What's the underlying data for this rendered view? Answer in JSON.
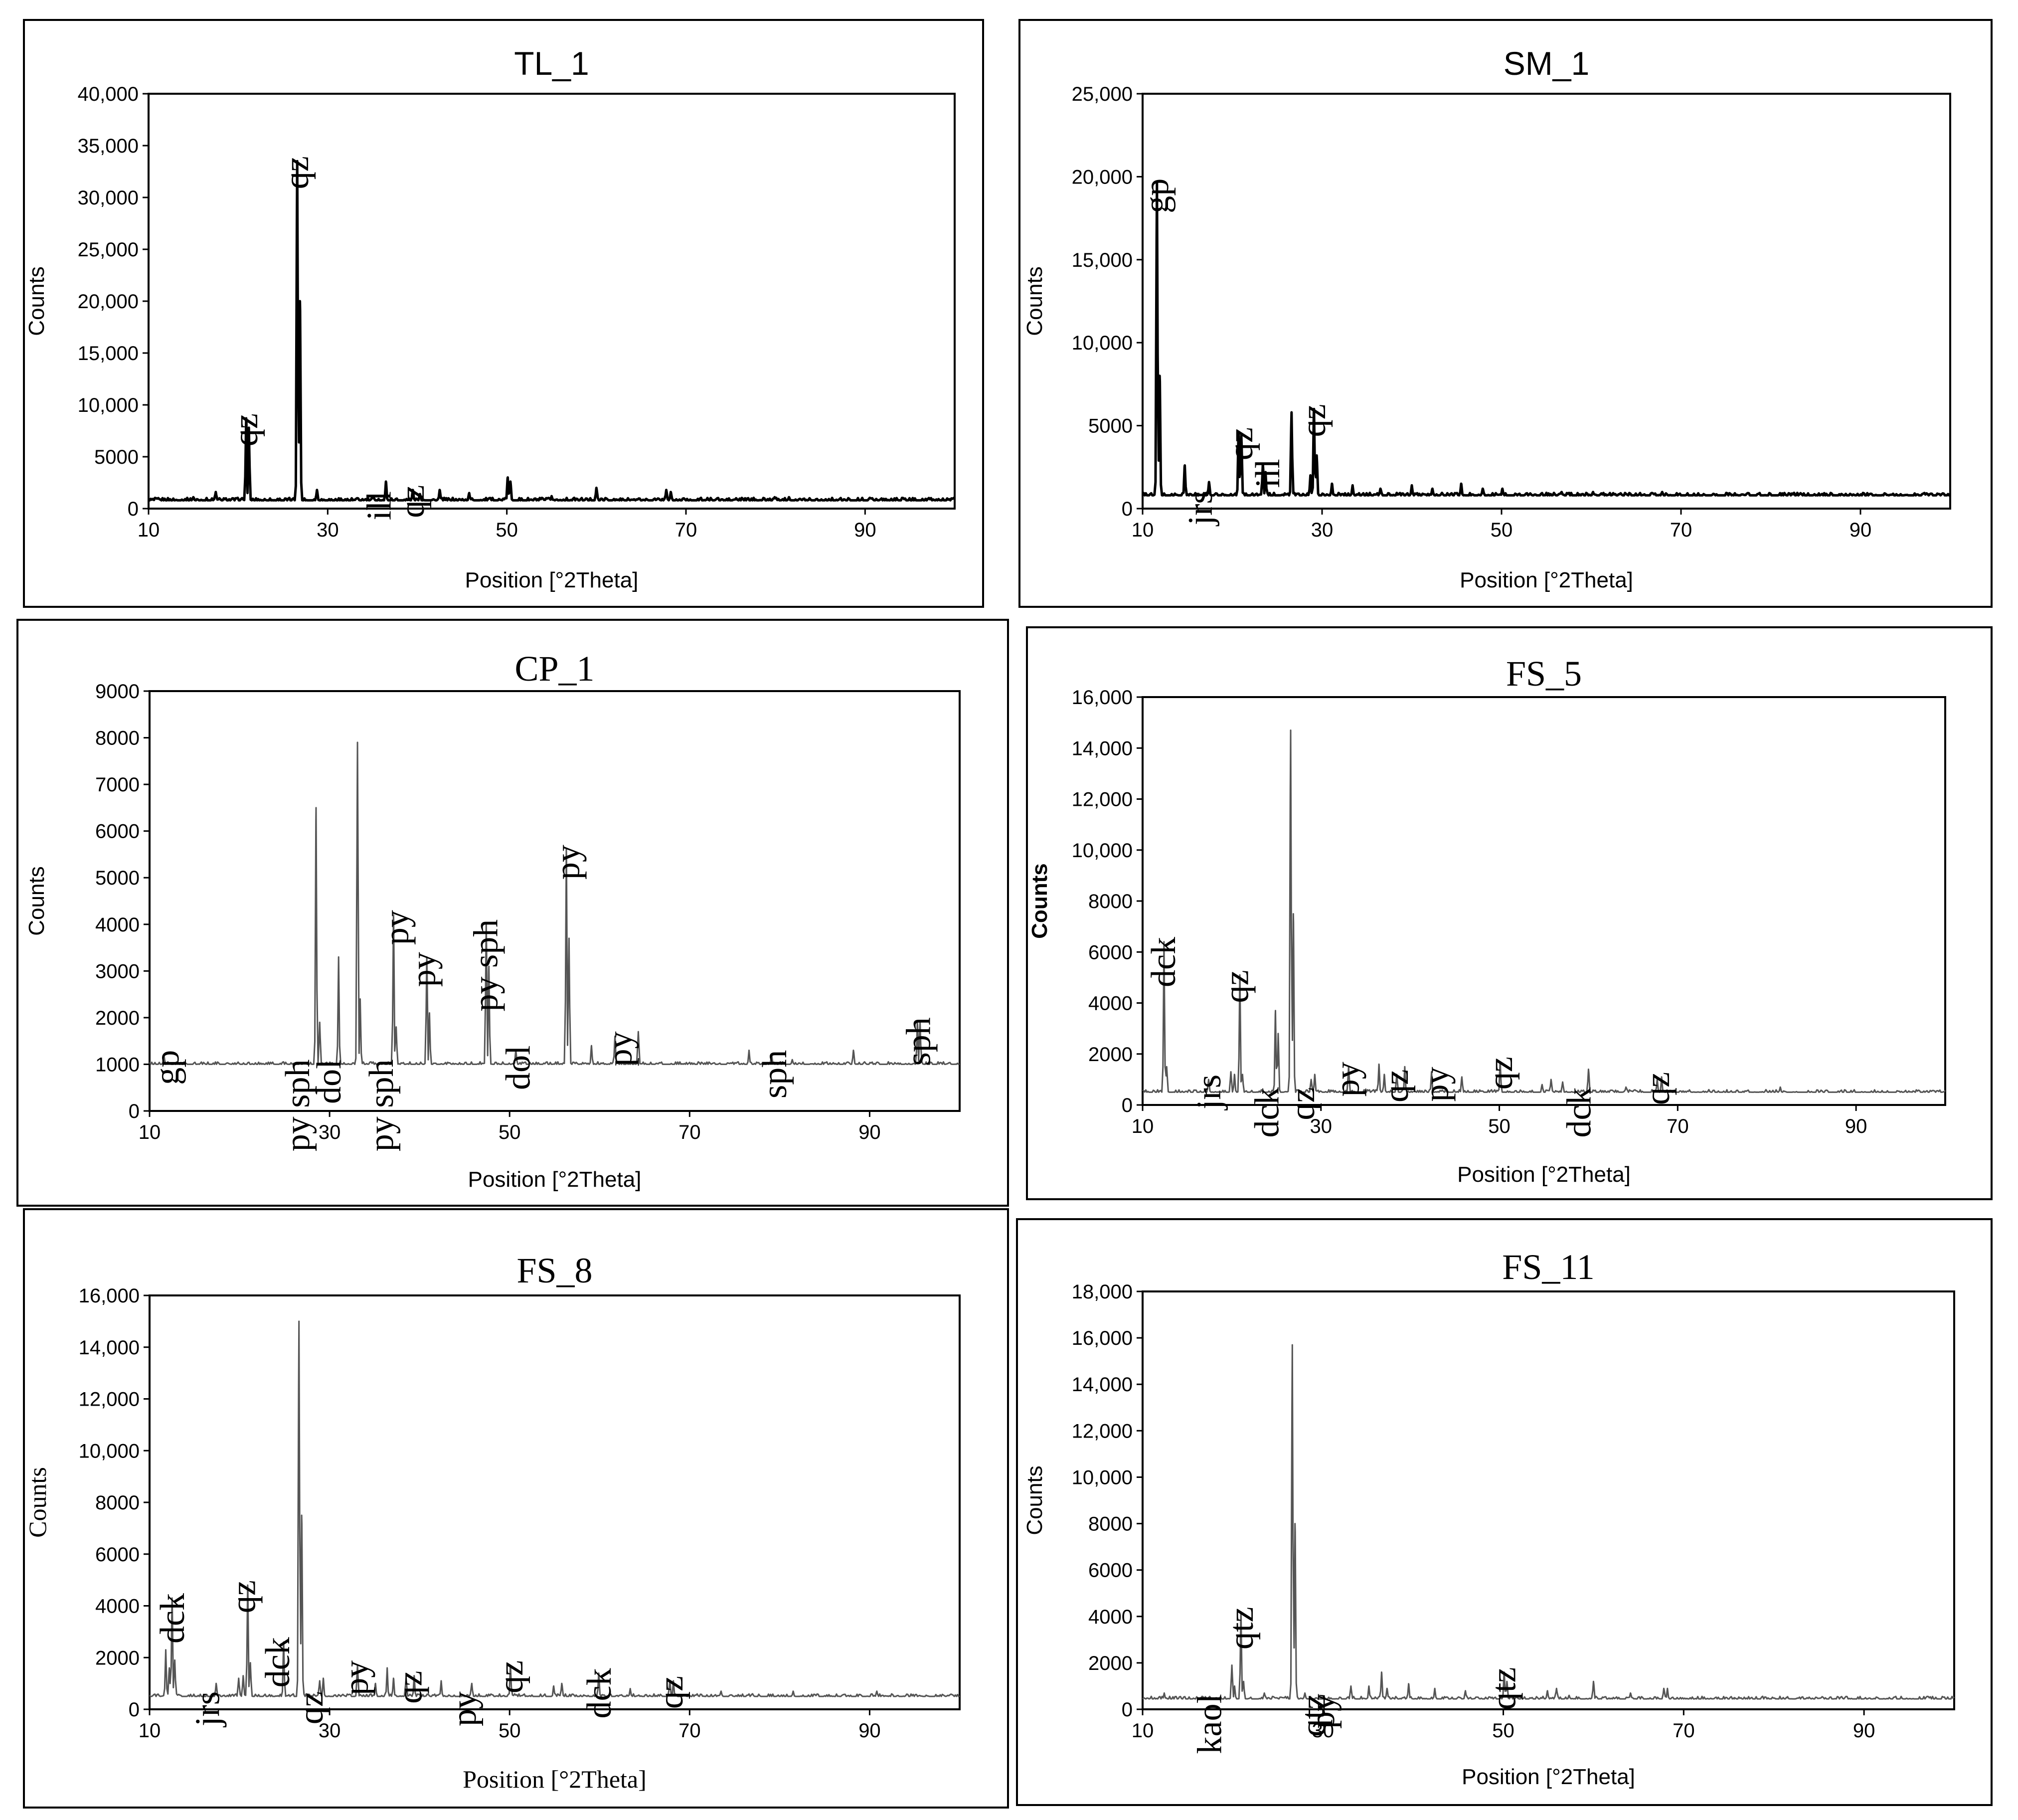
{
  "chart_data": [
    {
      "type": "line",
      "id": "TL_1",
      "title": "TL_1",
      "xlabel": "Position [°2Theta]",
      "ylabel": "Counts",
      "xlim": [
        10,
        100
      ],
      "ylim": [
        0,
        40000
      ],
      "xticks": [
        10,
        30,
        50,
        70,
        90
      ],
      "yticks": [
        0,
        5000,
        10000,
        15000,
        20000,
        25000,
        30000,
        35000,
        40000
      ],
      "ytick_labels": [
        "0",
        "5000",
        "10,000",
        "15,000",
        "20,000",
        "25,000",
        "30,000",
        "35,000",
        "40,000"
      ],
      "baseline": 800,
      "peaks": [
        [
          15,
          1100
        ],
        [
          17.5,
          1600
        ],
        [
          20.9,
          8700
        ],
        [
          21.2,
          7800
        ],
        [
          26.6,
          33500
        ],
        [
          26.9,
          20000
        ],
        [
          28.8,
          1800
        ],
        [
          35.1,
          1200
        ],
        [
          36.5,
          2600
        ],
        [
          39.5,
          1800
        ],
        [
          40.3,
          1400
        ],
        [
          42.5,
          1800
        ],
        [
          45.8,
          1500
        ],
        [
          50.1,
          3000
        ],
        [
          50.4,
          2600
        ],
        [
          55,
          1200
        ],
        [
          60,
          2000
        ],
        [
          64.2,
          900
        ],
        [
          67.8,
          1800
        ],
        [
          68.3,
          1600
        ],
        [
          73.5,
          1000
        ],
        [
          75.6,
          1000
        ],
        [
          79.9,
          1100
        ],
        [
          81.5,
          1100
        ],
        [
          83.8,
          1000
        ],
        [
          90.8,
          1000
        ]
      ],
      "annotations": [
        {
          "text": "qz",
          "x": 20.9
        },
        {
          "text": "qz",
          "x": 26.6
        },
        {
          "text": "ill",
          "x": 35.8
        },
        {
          "text": "qz",
          "x": 39.5
        }
      ]
    },
    {
      "type": "line",
      "id": "SM_1",
      "title": "SM_1",
      "xlabel": "Position [°2Theta]",
      "ylabel": "Counts",
      "xlim": [
        10,
        100
      ],
      "ylim": [
        0,
        25000
      ],
      "xticks": [
        10,
        30,
        50,
        70,
        90
      ],
      "yticks": [
        0,
        5000,
        10000,
        15000,
        20000,
        25000
      ],
      "ytick_labels": [
        "0",
        "5000",
        "10,000",
        "15,000",
        "20,000",
        "25,000"
      ],
      "baseline": 800,
      "peaks": [
        [
          11.6,
          19600
        ],
        [
          11.9,
          8000
        ],
        [
          14.7,
          2600
        ],
        [
          17.4,
          1600
        ],
        [
          20.7,
          4600
        ],
        [
          21,
          4400
        ],
        [
          23.4,
          2700
        ],
        [
          23.7,
          2200
        ],
        [
          26.6,
          5800
        ],
        [
          28.7,
          2000
        ],
        [
          29.1,
          6000
        ],
        [
          29.4,
          3200
        ],
        [
          31.1,
          1500
        ],
        [
          33.4,
          1400
        ],
        [
          36.5,
          1200
        ],
        [
          40,
          1400
        ],
        [
          42.3,
          1200
        ],
        [
          45.5,
          1500
        ],
        [
          47.9,
          1200
        ],
        [
          50.1,
          1200
        ],
        [
          56.7,
          1000
        ],
        [
          60.2,
          1000
        ],
        [
          67.9,
          1000
        ]
      ],
      "annotations": [
        {
          "text": "gp",
          "x": 11.6
        },
        {
          "text": "jrs",
          "x": 16.5
        },
        {
          "text": "qz",
          "x": 21
        },
        {
          "text": "ill",
          "x": 24
        },
        {
          "text": "qz",
          "x": 29.1
        }
      ]
    },
    {
      "type": "line",
      "id": "CP_1",
      "title": "CP_1",
      "xlabel": "Position [°2Theta]",
      "ylabel": "Counts",
      "xlim": [
        10,
        100
      ],
      "ylim": [
        0,
        9000
      ],
      "xticks": [
        10,
        30,
        50,
        70,
        90
      ],
      "yticks": [
        0,
        1000,
        2000,
        3000,
        4000,
        5000,
        6000,
        7000,
        8000,
        9000
      ],
      "ytick_labels": [
        "0",
        "1000",
        "2000",
        "3000",
        "4000",
        "5000",
        "6000",
        "7000",
        "8000",
        "9000"
      ],
      "baseline": 1000,
      "peaks": [
        [
          11.6,
          1200
        ],
        [
          28.5,
          6500
        ],
        [
          28.9,
          1900
        ],
        [
          31,
          3300
        ],
        [
          33.1,
          7900
        ],
        [
          33.4,
          2400
        ],
        [
          37.1,
          4200
        ],
        [
          37.4,
          1800
        ],
        [
          40.8,
          3300
        ],
        [
          41.1,
          2100
        ],
        [
          47.4,
          4000
        ],
        [
          47.7,
          3100
        ],
        [
          50.7,
          1300
        ],
        [
          56.3,
          5600
        ],
        [
          56.6,
          3700
        ],
        [
          59.1,
          1400
        ],
        [
          61.7,
          1600
        ],
        [
          64.3,
          1700
        ],
        [
          76.6,
          1300
        ],
        [
          79.1,
          1200
        ],
        [
          81.4,
          1100
        ],
        [
          88.2,
          1300
        ],
        [
          95.3,
          1900
        ],
        [
          95.6,
          1900
        ]
      ],
      "annotations": [
        {
          "text": "gp",
          "x": 12
        },
        {
          "text": "py sph",
          "x": 26.5
        },
        {
          "text": "dol",
          "x": 30
        },
        {
          "text": "py sph",
          "x": 35.8
        },
        {
          "text": "py",
          "x": 37.5
        },
        {
          "text": "py",
          "x": 40.5
        },
        {
          "text": "py sph",
          "x": 47.4
        },
        {
          "text": "dol",
          "x": 51
        },
        {
          "text": "py",
          "x": 56.5
        },
        {
          "text": "py",
          "x": 62.3
        },
        {
          "text": "sph",
          "x": 79.5
        },
        {
          "text": "sph",
          "x": 95.5
        }
      ]
    },
    {
      "type": "line",
      "id": "FS_5",
      "title": "FS_5",
      "xlabel": "Position [°2Theta]",
      "ylabel": "Counts",
      "xlim": [
        10,
        100
      ],
      "ylim": [
        0,
        16000
      ],
      "xticks": [
        10,
        30,
        50,
        70,
        90
      ],
      "yticks": [
        0,
        2000,
        4000,
        6000,
        8000,
        10000,
        12000,
        14000,
        16000
      ],
      "ytick_labels": [
        "0",
        "2000",
        "4000",
        "6000",
        "8000",
        "10,000",
        "12,000",
        "14,000",
        "16,000"
      ],
      "baseline": 500,
      "peaks": [
        [
          12.4,
          6400
        ],
        [
          12.7,
          1500
        ],
        [
          17.4,
          1000
        ],
        [
          19.9,
          1300
        ],
        [
          20.3,
          1200
        ],
        [
          20.9,
          5100
        ],
        [
          21.2,
          1200
        ],
        [
          24.9,
          3700
        ],
        [
          25.2,
          2800
        ],
        [
          26.6,
          14700
        ],
        [
          26.9,
          7500
        ],
        [
          28.9,
          1000
        ],
        [
          29.3,
          1200
        ],
        [
          33.1,
          1500
        ],
        [
          36.5,
          1600
        ],
        [
          37.1,
          1200
        ],
        [
          38.5,
          1200
        ],
        [
          39.4,
          1500
        ],
        [
          42.4,
          1300
        ],
        [
          45.8,
          1100
        ],
        [
          50.1,
          1700
        ],
        [
          54.8,
          800
        ],
        [
          55.8,
          1000
        ],
        [
          57.1,
          900
        ],
        [
          60,
          1400
        ],
        [
          64.2,
          700
        ],
        [
          67.7,
          1000
        ],
        [
          68.2,
          1100
        ],
        [
          73.5,
          600
        ],
        [
          75.6,
          500
        ],
        [
          79.9,
          600
        ],
        [
          81.5,
          700
        ]
      ],
      "annotations": [
        {
          "text": "dck",
          "x": 12.4
        },
        {
          "text": "jrs",
          "x": 17.5
        },
        {
          "text": "qz",
          "x": 20.6
        },
        {
          "text": "dck",
          "x": 24
        },
        {
          "text": "qz",
          "x": 28
        },
        {
          "text": "py",
          "x": 33
        },
        {
          "text": "qz",
          "x": 38.5
        },
        {
          "text": "py",
          "x": 43
        },
        {
          "text": "qz",
          "x": 50.2
        },
        {
          "text": "dck",
          "x": 59
        },
        {
          "text": "qz",
          "x": 67.8
        }
      ]
    },
    {
      "type": "line",
      "id": "FS_8",
      "title": "FS_8",
      "xlabel": "Position [°2Theta]",
      "ylabel": "Counts",
      "xlim": [
        10,
        100
      ],
      "ylim": [
        0,
        16000
      ],
      "xticks": [
        10,
        30,
        50,
        70,
        90
      ],
      "yticks": [
        0,
        2000,
        4000,
        6000,
        8000,
        10000,
        12000,
        14000,
        16000
      ],
      "ytick_labels": [
        "0",
        "2000",
        "4000",
        "6000",
        "8000",
        "10,000",
        "12,000",
        "14,000",
        "16,000"
      ],
      "baseline": 500,
      "peaks": [
        [
          11.8,
          2300
        ],
        [
          12.2,
          1600
        ],
        [
          12.5,
          4300
        ],
        [
          12.8,
          1900
        ],
        [
          17.4,
          1000
        ],
        [
          19.9,
          1200
        ],
        [
          20.4,
          1300
        ],
        [
          20.9,
          4800
        ],
        [
          21.2,
          1800
        ],
        [
          24.9,
          2600
        ],
        [
          26.6,
          15000
        ],
        [
          26.9,
          7500
        ],
        [
          28.9,
          1100
        ],
        [
          29.3,
          1200
        ],
        [
          33.1,
          1700
        ],
        [
          35.1,
          1000
        ],
        [
          36.4,
          1600
        ],
        [
          37.1,
          1200
        ],
        [
          38.5,
          1200
        ],
        [
          39.4,
          1300
        ],
        [
          42.4,
          1100
        ],
        [
          45.8,
          1000
        ],
        [
          50.1,
          1700
        ],
        [
          54.9,
          900
        ],
        [
          55.8,
          1000
        ],
        [
          59.9,
          1400
        ],
        [
          63.4,
          800
        ],
        [
          67.8,
          1100
        ],
        [
          68.2,
          1100
        ],
        [
          73.5,
          700
        ],
        [
          77,
          600
        ],
        [
          81.5,
          700
        ],
        [
          90.8,
          700
        ]
      ],
      "annotations": [
        {
          "text": "dck",
          "x": 12.6
        },
        {
          "text": "jrs",
          "x": 16.5
        },
        {
          "text": "qz",
          "x": 20.5
        },
        {
          "text": "dck",
          "x": 24.3
        },
        {
          "text": "qz",
          "x": 28
        },
        {
          "text": "py",
          "x": 33
        },
        {
          "text": "qz",
          "x": 39
        },
        {
          "text": "py",
          "x": 45
        },
        {
          "text": "qz",
          "x": 50.2
        },
        {
          "text": "dck",
          "x": 60
        },
        {
          "text": "qz",
          "x": 68
        }
      ]
    },
    {
      "type": "line",
      "id": "FS_11",
      "title": "FS_11",
      "xlabel": "Position [°2Theta]",
      "ylabel": "Counts",
      "xlim": [
        10,
        100
      ],
      "ylim": [
        0,
        18000
      ],
      "xticks": [
        10,
        30,
        50,
        70,
        90
      ],
      "yticks": [
        0,
        2000,
        4000,
        6000,
        8000,
        10000,
        12000,
        14000,
        16000,
        18000
      ],
      "ytick_labels": [
        "0",
        "2000",
        "4000",
        "6000",
        "8000",
        "10,000",
        "12,000",
        "14,000",
        "16,000",
        "18,000"
      ],
      "baseline": 450,
      "peaks": [
        [
          12.4,
          700
        ],
        [
          19.9,
          1900
        ],
        [
          20.2,
          1000
        ],
        [
          20.9,
          4200
        ],
        [
          21.2,
          1200
        ],
        [
          23.5,
          700
        ],
        [
          26.6,
          15700
        ],
        [
          26.9,
          8000
        ],
        [
          28,
          700
        ],
        [
          33.1,
          1000
        ],
        [
          35.1,
          1000
        ],
        [
          36.5,
          1600
        ],
        [
          37.1,
          900
        ],
        [
          39.5,
          1100
        ],
        [
          42.4,
          900
        ],
        [
          45.8,
          800
        ],
        [
          50.1,
          1600
        ],
        [
          50.4,
          1200
        ],
        [
          54.9,
          800
        ],
        [
          55.9,
          900
        ],
        [
          57.3,
          600
        ],
        [
          60,
          1200
        ],
        [
          64.1,
          700
        ],
        [
          67.8,
          900
        ],
        [
          68.2,
          900
        ],
        [
          73.5,
          500
        ],
        [
          75.6,
          450
        ],
        [
          79.9,
          500
        ],
        [
          81.5,
          500
        ]
      ],
      "annotations": [
        {
          "text": "kaol",
          "x": 17.5
        },
        {
          "text": "qtz",
          "x": 21
        },
        {
          "text": "qtz",
          "x": 29
        },
        {
          "text": "py",
          "x": 30
        },
        {
          "text": "qtz",
          "x": 50.1
        }
      ]
    }
  ]
}
